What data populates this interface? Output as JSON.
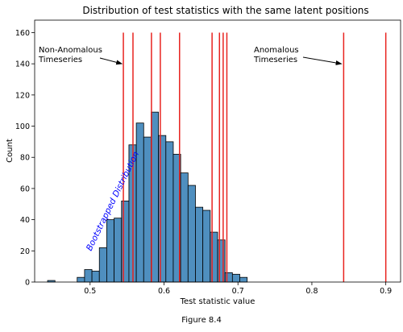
{
  "chart_data": {
    "type": "bar",
    "title": "Distribution of test statistics with the same latent positions",
    "xlabel": "Test statistic value",
    "ylabel": "Count",
    "xlim": [
      0.425,
      0.92
    ],
    "ylim": [
      0,
      168
    ],
    "x_ticks": [
      0.5,
      0.6,
      0.7,
      0.8,
      0.9
    ],
    "x_tick_labels": [
      "0.5",
      "0.6",
      "0.7",
      "0.8",
      "0.9"
    ],
    "y_ticks": [
      0,
      20,
      40,
      60,
      80,
      100,
      120,
      140,
      160
    ],
    "y_tick_labels": [
      "0",
      "20",
      "40",
      "60",
      "80",
      "100",
      "120",
      "140",
      "160"
    ],
    "grid": false,
    "bar_color": "#4f8fbf",
    "line_color": "#e8231f",
    "histogram": {
      "bin_edges": [
        0.4425,
        0.4525,
        0.4625,
        0.4725,
        0.4825,
        0.4925,
        0.5025,
        0.5125,
        0.5225,
        0.5325,
        0.5425,
        0.5525,
        0.5625,
        0.5725,
        0.5825,
        0.5925,
        0.6025,
        0.6125,
        0.6225,
        0.6325,
        0.6425,
        0.6525,
        0.6625,
        0.6725,
        0.6825,
        0.6925,
        0.7025,
        0.7125
      ],
      "counts": [
        1,
        0,
        0,
        0,
        3,
        8,
        7,
        22,
        40,
        41,
        52,
        88,
        102,
        93,
        109,
        94,
        90,
        82,
        70,
        62,
        48,
        46,
        32,
        27,
        6,
        5,
        3
      ]
    },
    "vertical_lines": [
      0.545,
      0.558,
      0.583,
      0.595,
      0.621,
      0.665,
      0.675,
      0.68,
      0.685,
      0.843,
      0.9
    ],
    "annotations": [
      {
        "text_lines": [
          "Non-Anomalous",
          "Timeseries"
        ],
        "arrow_to": [
          0.543,
          140
        ]
      },
      {
        "text_lines": [
          "Anomalous",
          "Timeseries"
        ],
        "arrow_to": [
          0.84,
          140
        ]
      }
    ],
    "rotated_label": {
      "text": "Bootstrapped Distribution",
      "color": "#0000ff"
    }
  },
  "caption": "Figure 8.4"
}
